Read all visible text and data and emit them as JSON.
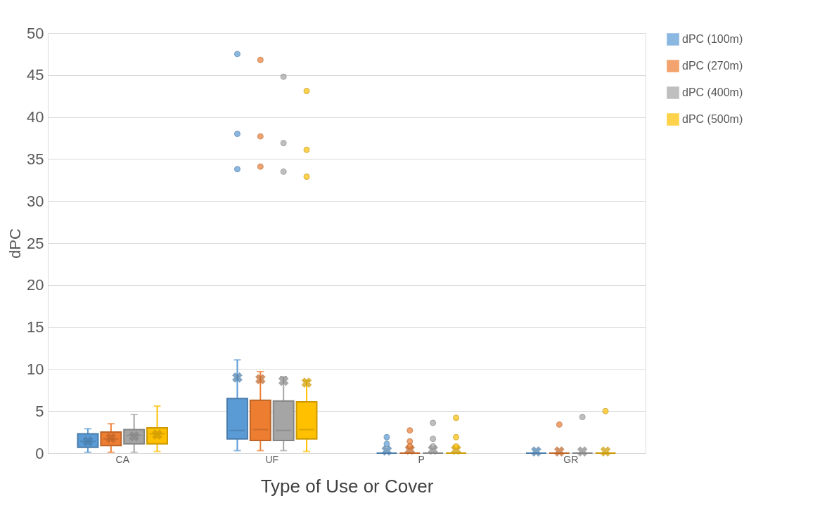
{
  "chart_data": {
    "type": "box",
    "xlabel": "Type of Use or Cover",
    "ylabel": "dPC",
    "categories": [
      "CA",
      "UF",
      "P",
      "GR"
    ],
    "ylim": [
      0,
      50
    ],
    "yticks": [
      0,
      5,
      10,
      15,
      20,
      25,
      30,
      35,
      40,
      45,
      50
    ],
    "grid": "y",
    "legend": "right",
    "series": [
      {
        "name": "dPC (100m)",
        "color": "#5b9bd5",
        "boxes": [
          {
            "low": 0.1,
            "q1": 0.7,
            "median": 1.4,
            "q3": 2.3,
            "high": 2.9,
            "mean": 1.4
          },
          {
            "low": 0.3,
            "q1": 1.7,
            "median": 2.7,
            "q3": 6.5,
            "high": 11.1,
            "mean": 9.0,
            "outliers": [
              47.5,
              38.0,
              33.8
            ]
          },
          {
            "low": 0,
            "q1": 0,
            "median": 0,
            "q3": 0,
            "high": 0,
            "mean": 0.3,
            "outliers": [
              1.9,
              1.1
            ]
          },
          {
            "low": 0,
            "q1": 0,
            "median": 0,
            "q3": 0,
            "high": 0,
            "mean": 0.2
          }
        ]
      },
      {
        "name": "dPC (270m)",
        "color": "#ed7d31",
        "boxes": [
          {
            "low": 0.1,
            "q1": 0.9,
            "median": 1.7,
            "q3": 2.5,
            "high": 3.5,
            "mean": 1.8
          },
          {
            "low": 0.3,
            "q1": 1.5,
            "median": 2.8,
            "q3": 6.3,
            "high": 9.7,
            "mean": 8.8,
            "outliers": [
              46.8,
              37.7,
              34.1
            ]
          },
          {
            "low": 0,
            "q1": 0,
            "median": 0,
            "q3": 0,
            "high": 0,
            "mean": 0.4,
            "outliers": [
              2.7,
              1.4,
              0.8
            ]
          },
          {
            "low": 0,
            "q1": 0,
            "median": 0,
            "q3": 0,
            "high": 0,
            "mean": 0.2,
            "outliers": [
              3.4
            ]
          }
        ]
      },
      {
        "name": "dPC (400m)",
        "color": "#a5a5a5",
        "boxes": [
          {
            "low": 0.1,
            "q1": 1.1,
            "median": 2.1,
            "q3": 2.8,
            "high": 4.6,
            "mean": 2.0
          },
          {
            "low": 0.3,
            "q1": 1.5,
            "median": 2.7,
            "q3": 6.2,
            "high": 9.1,
            "mean": 8.6,
            "outliers": [
              44.8,
              36.9,
              33.5
            ]
          },
          {
            "low": 0,
            "q1": 0,
            "median": 0,
            "q3": 0,
            "high": 0,
            "mean": 0.4,
            "outliers": [
              3.6,
              1.7,
              0.8
            ]
          },
          {
            "low": 0,
            "q1": 0,
            "median": 0,
            "q3": 0,
            "high": 0,
            "mean": 0.2,
            "outliers": [
              4.3
            ]
          }
        ]
      },
      {
        "name": "dPC (500m)",
        "color": "#ffc000",
        "boxes": [
          {
            "low": 0.2,
            "q1": 1.1,
            "median": 2.3,
            "q3": 3.0,
            "high": 5.6,
            "mean": 2.2
          },
          {
            "low": 0.2,
            "q1": 1.7,
            "median": 2.8,
            "q3": 6.1,
            "high": 8.6,
            "mean": 8.4,
            "outliers": [
              43.1,
              36.1,
              32.9
            ]
          },
          {
            "low": 0,
            "q1": 0,
            "median": 0,
            "q3": 0,
            "high": 0,
            "mean": 0.4,
            "outliers": [
              4.2,
              1.9,
              0.8
            ]
          },
          {
            "low": 0,
            "q1": 0,
            "median": 0,
            "q3": 0,
            "high": 0,
            "mean": 0.2,
            "outliers": [
              5.0
            ]
          }
        ]
      }
    ]
  }
}
